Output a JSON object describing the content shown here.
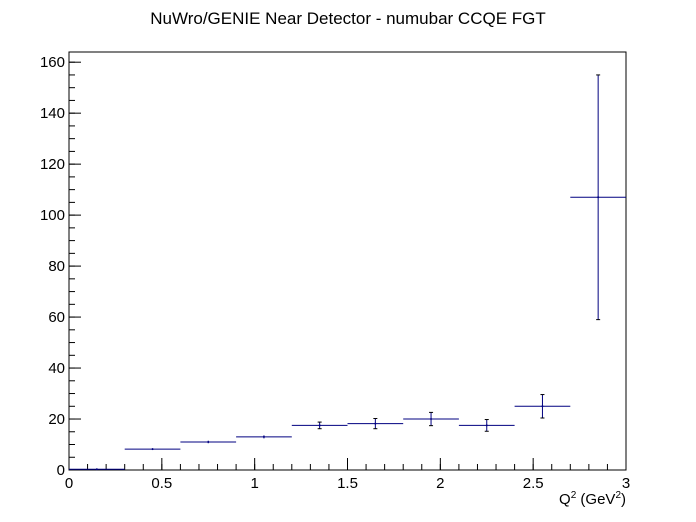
{
  "chart_data": {
    "type": "scatter",
    "title": "NuWro/GENIE Near Detector - numubar CCQE FGT",
    "xlabel": {
      "base": "Q",
      "sup1": "2",
      "mid": " (GeV",
      "sup2": "2",
      "end": ")"
    },
    "ylabel": "",
    "xlim": [
      0,
      3
    ],
    "ylim": [
      0,
      164
    ],
    "x_ticks": [
      {
        "value": 0,
        "label": "0"
      },
      {
        "value": 0.5,
        "label": "0.5"
      },
      {
        "value": 1,
        "label": "1"
      },
      {
        "value": 1.5,
        "label": "1.5"
      },
      {
        "value": 2,
        "label": "2"
      },
      {
        "value": 2.5,
        "label": "2.5"
      },
      {
        "value": 3,
        "label": "3"
      }
    ],
    "y_ticks": [
      {
        "value": 0,
        "label": "0"
      },
      {
        "value": 20,
        "label": "20"
      },
      {
        "value": 40,
        "label": "40"
      },
      {
        "value": 60,
        "label": "60"
      },
      {
        "value": 80,
        "label": "80"
      },
      {
        "value": 100,
        "label": "100"
      },
      {
        "value": 120,
        "label": "120"
      },
      {
        "value": 140,
        "label": "140"
      },
      {
        "value": 160,
        "label": "160"
      }
    ],
    "x_minor_step": 0.1,
    "y_minor_step": 5,
    "grid": false,
    "legend": "none",
    "color": "#000080",
    "points": [
      {
        "x_low": 0.0,
        "x_high": 0.3,
        "y": 0.3,
        "y_err": 0.1
      },
      {
        "x_low": 0.3,
        "x_high": 0.6,
        "y": 8.2,
        "y_err": 0.3
      },
      {
        "x_low": 0.6,
        "x_high": 0.9,
        "y": 11.0,
        "y_err": 0.5
      },
      {
        "x_low": 0.9,
        "x_high": 1.2,
        "y": 13.0,
        "y_err": 0.6
      },
      {
        "x_low": 1.2,
        "x_high": 1.5,
        "y": 17.5,
        "y_err": 1.3
      },
      {
        "x_low": 1.5,
        "x_high": 1.8,
        "y": 18.2,
        "y_err": 2.0
      },
      {
        "x_low": 1.8,
        "x_high": 2.1,
        "y": 20.0,
        "y_err": 2.6
      },
      {
        "x_low": 2.1,
        "x_high": 2.4,
        "y": 17.5,
        "y_err": 2.3
      },
      {
        "x_low": 2.4,
        "x_high": 2.7,
        "y": 25.0,
        "y_err": 4.6
      },
      {
        "x_low": 2.7,
        "x_high": 3.0,
        "y": 107.0,
        "y_err": 48.0
      }
    ]
  }
}
